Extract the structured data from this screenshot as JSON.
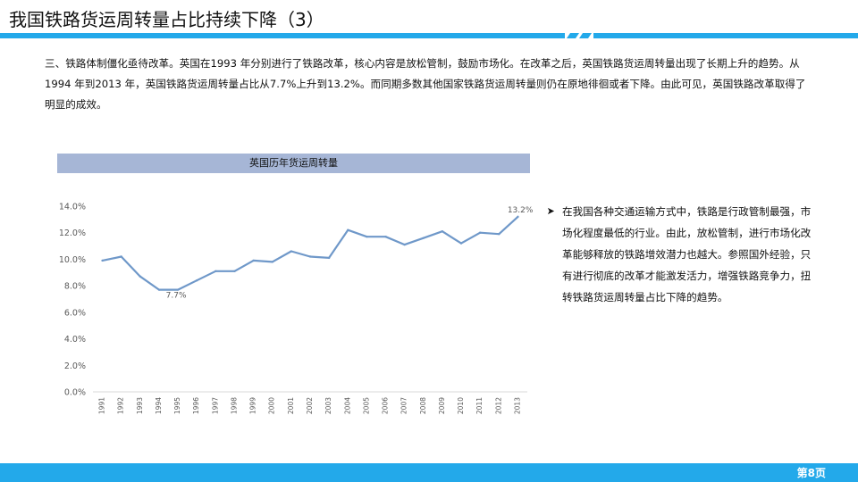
{
  "slide": {
    "title": "我国铁路货运周转量占比持续下降（3）",
    "paragraph": "三、铁路体制僵化亟待改革。英国在1993 年分别进行了铁路改革，核心内容是放松管制，鼓励市场化。在改革之后，英国铁路货运周转量出现了长期上升的趋势。从1994 年到2013 年，英国铁路货运周转量占比从7.7%上升到13.2%。而同期多数其他国家铁路货运周转量则仍在原地徘徊或者下降。由此可见，英国铁路改革取得了明显的成效。",
    "bullet": "在我国各种交通运输方式中，铁路是行政管制最强，市场化程度最低的行业。由此，放松管制，进行市场化改革能够释放的铁路增效潜力也越大。参照国外经验，只有进行彻底的改革才能激发活力，增强铁路竞争力，扭转铁路货运周转量占比下降的趋势。",
    "page": "第8页",
    "colors": {
      "accent": "#23a9ea",
      "chart_header_bg": "#a6b6d6",
      "line": "#6f98c9",
      "axis_text": "#595959",
      "axis_line": "#d9d9d9"
    },
    "icons": {
      "bullet": "arrow-bullet-icon"
    }
  },
  "chart_data": {
    "type": "line",
    "title": "英国历年货运周转量",
    "xlabel": "",
    "ylabel": "",
    "categories": [
      "1991",
      "1992",
      "1993",
      "1994",
      "1995",
      "1996",
      "1997",
      "1998",
      "1999",
      "2000",
      "2001",
      "2002",
      "2003",
      "2004",
      "2005",
      "2006",
      "2007",
      "2008",
      "2009",
      "2010",
      "2011",
      "2012",
      "2013"
    ],
    "series": [
      {
        "values": [
          9.9,
          10.2,
          8.7,
          7.7,
          7.7,
          8.4,
          9.1,
          9.1,
          9.9,
          9.8,
          10.6,
          10.2,
          10.1,
          12.2,
          11.7,
          11.7,
          11.1,
          11.6,
          12.1,
          11.2,
          12.0,
          11.9,
          13.2
        ]
      }
    ],
    "ylim": [
      0,
      14
    ],
    "yticks": [
      "0.0%",
      "2.0%",
      "4.0%",
      "6.0%",
      "8.0%",
      "10.0%",
      "12.0%",
      "14.0%"
    ],
    "ytick_values": [
      0,
      2,
      4,
      6,
      8,
      10,
      12,
      14
    ],
    "data_labels": [
      {
        "index": 4,
        "text": "7.7%"
      },
      {
        "index": 22,
        "text": "13.2%"
      }
    ],
    "grid": false,
    "legend": "none"
  }
}
